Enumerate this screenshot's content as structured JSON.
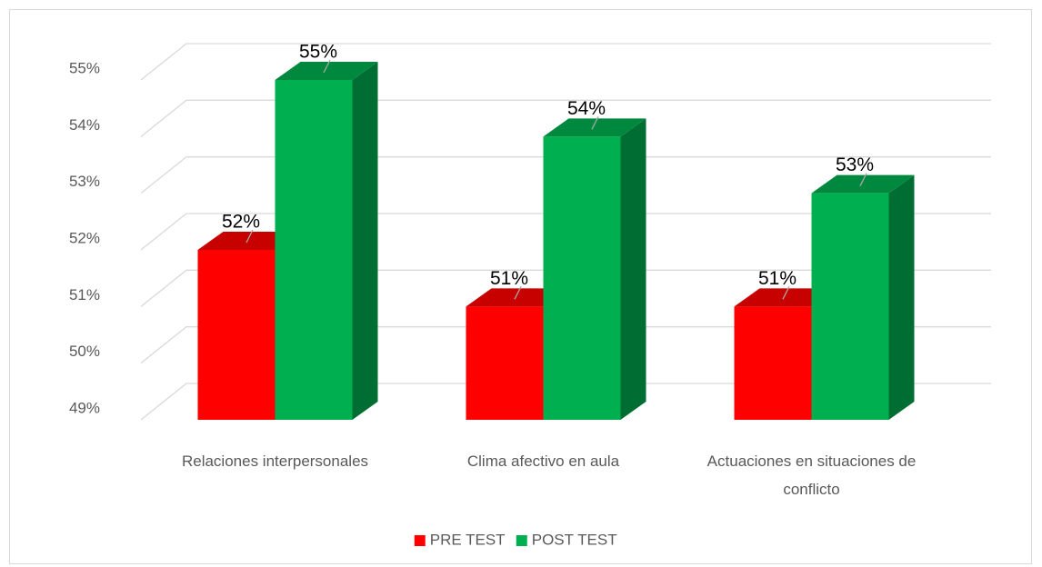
{
  "chart_data": {
    "type": "bar3d",
    "categories": [
      "Relaciones interpersonales",
      "Clima afectivo en aula",
      "Actuaciones en situaciones de conflicto"
    ],
    "series": [
      {
        "name": "PRE TEST",
        "color": "#ff0000",
        "values": [
          52,
          51,
          51
        ],
        "value_labels": [
          "52%",
          "51%",
          "51%"
        ]
      },
      {
        "name": "POST TEST",
        "color": "#00b050",
        "values": [
          55,
          54,
          53
        ],
        "value_labels": [
          "55%",
          "54%",
          "53%"
        ]
      }
    ],
    "ylim": [
      49,
      55
    ],
    "yticks": [
      {
        "value": 49,
        "label": "49%"
      },
      {
        "value": 50,
        "label": "50%"
      },
      {
        "value": 51,
        "label": "51%"
      },
      {
        "value": 52,
        "label": "52%"
      },
      {
        "value": 53,
        "label": "53%"
      },
      {
        "value": 54,
        "label": "54%"
      },
      {
        "value": 55,
        "label": "55%"
      }
    ],
    "grid": true,
    "legend": "bottom"
  }
}
